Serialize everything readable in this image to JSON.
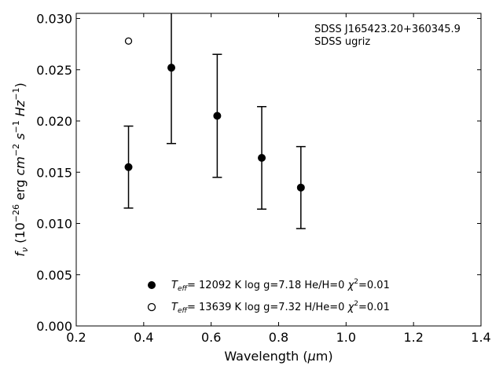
{
  "chart_data": {
    "type": "scatter",
    "xlabel": "Wavelength (μm)",
    "ylabel": "fν (10⁻²⁶ erg cm⁻² s⁻¹ Hz⁻¹)",
    "xlim": [
      0.2,
      1.4
    ],
    "ylim": [
      0.0,
      0.0305
    ],
    "xticks": [
      "0.2",
      "0.4",
      "0.6",
      "0.8",
      "1.0",
      "1.2",
      "1.4"
    ],
    "yticks": [
      "0.000",
      "0.005",
      "0.010",
      "0.015",
      "0.020",
      "0.025",
      "0.030"
    ],
    "annotation": [
      "SDSS J165423.20+360345.9",
      "SDSS ugriz"
    ],
    "legend_position": "bottom-center",
    "grid": false,
    "series": [
      {
        "name": "T_eff= 12092 K  log g=7.18  He/H=0  χ²=0.01",
        "marker": "filled-circle",
        "points": [
          {
            "x": 0.355,
            "y": 0.0155,
            "err": 0.004
          },
          {
            "x": 0.482,
            "y": 0.0252,
            "err": 0.0074
          },
          {
            "x": 0.618,
            "y": 0.0205,
            "err": 0.006
          },
          {
            "x": 0.75,
            "y": 0.0164,
            "err": 0.005
          },
          {
            "x": 0.866,
            "y": 0.0135,
            "err": 0.004
          }
        ]
      },
      {
        "name": "T_eff= 13639 K  log g=7.32  H/He=0  χ²=0.01",
        "marker": "open-circle",
        "points": [
          {
            "x": 0.355,
            "y": 0.0278
          }
        ]
      }
    ]
  },
  "legend": [
    {
      "label_parts": [
        "T",
        "eff",
        "= 12092 K  log g=7.18  He/H=0  ",
        "χ",
        "2",
        "=0.01"
      ]
    },
    {
      "label_parts": [
        "T",
        "eff",
        "= 13639 K  log g=7.32  H/He=0  ",
        "χ",
        "2",
        "=0.01"
      ]
    }
  ]
}
